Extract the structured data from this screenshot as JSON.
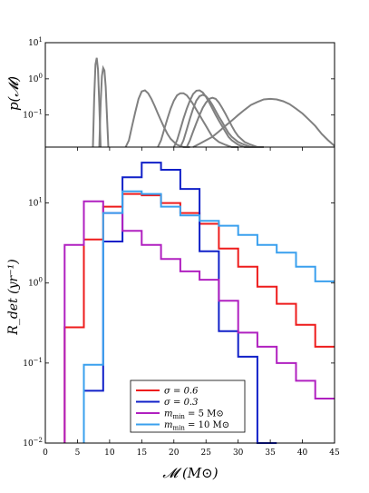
{
  "chart_data": [
    {
      "type": "line",
      "ylabel": "p(𝓜)",
      "yscale": "log",
      "xlim": [
        0,
        45
      ],
      "ylim": [
        0.013,
        10
      ],
      "yticks": [
        {
          "value": 10,
          "base": "10",
          "exp": "1"
        },
        {
          "value": 1,
          "base": "10",
          "exp": "0"
        },
        {
          "value": 0.1,
          "base": "10",
          "exp": "−1"
        }
      ],
      "color": "#808080",
      "series": [
        {
          "x": [
            7.4,
            7.6,
            7.8,
            8.0,
            8.2,
            8.4,
            8.6
          ],
          "y": [
            0.013,
            0.3,
            2.5,
            3.8,
            1.8,
            0.2,
            0.013
          ]
        },
        {
          "x": [
            8.4,
            8.6,
            8.8,
            9.0,
            9.2,
            9.4,
            9.6,
            9.8
          ],
          "y": [
            0.013,
            0.2,
            1.2,
            2.0,
            1.7,
            0.6,
            0.08,
            0.013
          ]
        },
        {
          "x": [
            12.5,
            13,
            13.5,
            14,
            14.5,
            15,
            15.5,
            16,
            16.5,
            17,
            17.5,
            18,
            18.5,
            19,
            19.5,
            20,
            20.5,
            21,
            21.5,
            22,
            22.5
          ],
          "y": [
            0.013,
            0.02,
            0.05,
            0.12,
            0.28,
            0.45,
            0.48,
            0.4,
            0.28,
            0.18,
            0.11,
            0.07,
            0.045,
            0.03,
            0.022,
            0.018,
            0.015,
            0.014,
            0.013,
            0.013,
            0.013
          ]
        },
        {
          "x": [
            17.5,
            18,
            18.5,
            19,
            19.5,
            20,
            20.5,
            21,
            21.5,
            22,
            22.5,
            23,
            23.5,
            24,
            24.5,
            25,
            25.5,
            26,
            27,
            28,
            29,
            30
          ],
          "y": [
            0.013,
            0.02,
            0.04,
            0.08,
            0.15,
            0.25,
            0.35,
            0.4,
            0.4,
            0.35,
            0.27,
            0.2,
            0.14,
            0.1,
            0.07,
            0.05,
            0.035,
            0.025,
            0.018,
            0.015,
            0.013,
            0.013
          ]
        },
        {
          "x": [
            20,
            20.5,
            21,
            21.5,
            22,
            22.5,
            23,
            23.5,
            24,
            24.5,
            25,
            25.5,
            26,
            26.5,
            27,
            27.5,
            28,
            28.5,
            29,
            30,
            31,
            32
          ],
          "y": [
            0.013,
            0.02,
            0.04,
            0.08,
            0.15,
            0.25,
            0.38,
            0.47,
            0.48,
            0.42,
            0.32,
            0.22,
            0.15,
            0.1,
            0.07,
            0.05,
            0.035,
            0.025,
            0.02,
            0.015,
            0.013,
            0.013
          ]
        },
        {
          "x": [
            21,
            21.5,
            22,
            22.5,
            23,
            23.5,
            24,
            24.5,
            25,
            25.5,
            26,
            26.5,
            27,
            27.5,
            28,
            28.5,
            29,
            30,
            31,
            32,
            33
          ],
          "y": [
            0.013,
            0.02,
            0.04,
            0.08,
            0.15,
            0.25,
            0.33,
            0.36,
            0.33,
            0.26,
            0.19,
            0.13,
            0.09,
            0.065,
            0.045,
            0.032,
            0.025,
            0.018,
            0.015,
            0.013,
            0.013
          ]
        },
        {
          "x": [
            22,
            22.5,
            23,
            23.5,
            24,
            24.5,
            25,
            25.5,
            26,
            26.5,
            27,
            27.5,
            28,
            28.5,
            29,
            29.5,
            30,
            31,
            32,
            33,
            34
          ],
          "y": [
            0.013,
            0.02,
            0.035,
            0.06,
            0.1,
            0.16,
            0.22,
            0.28,
            0.3,
            0.28,
            0.22,
            0.16,
            0.11,
            0.075,
            0.05,
            0.035,
            0.026,
            0.018,
            0.015,
            0.013,
            0.013
          ]
        },
        {
          "x": [
            23,
            24,
            25,
            26,
            27,
            28,
            29,
            30,
            31,
            32,
            33,
            34,
            35,
            36,
            37,
            38,
            39,
            40,
            41,
            42,
            43,
            44,
            45
          ],
          "y": [
            0.013,
            0.016,
            0.02,
            0.025,
            0.035,
            0.05,
            0.07,
            0.1,
            0.14,
            0.19,
            0.23,
            0.27,
            0.28,
            0.27,
            0.24,
            0.2,
            0.15,
            0.11,
            0.075,
            0.05,
            0.03,
            0.02,
            0.014
          ]
        }
      ]
    },
    {
      "type": "step",
      "ylabel": "R_det (yr⁻¹)",
      "xlabel": "𝓜 (M⊙)",
      "yscale": "log",
      "xlim": [
        0,
        45
      ],
      "ylim": [
        0.01,
        50
      ],
      "xticks": [
        "0",
        "5",
        "10",
        "15",
        "20",
        "25",
        "30",
        "35",
        "40",
        "45"
      ],
      "yticks": [
        {
          "value": 10,
          "base": "10",
          "exp": "1"
        },
        {
          "value": 1,
          "base": "10",
          "exp": "0"
        },
        {
          "value": 0.1,
          "base": "10",
          "exp": "−1"
        },
        {
          "value": 0.01,
          "base": "10",
          "exp": "−2"
        }
      ],
      "bin_edges": [
        3,
        6,
        9,
        12,
        15,
        18,
        21,
        24,
        27,
        30,
        33,
        36,
        39,
        42,
        45
      ],
      "series": [
        {
          "name": "σ = 0.6",
          "color": "#ee1c1c",
          "values": [
            0.28,
            3.5,
            9,
            13,
            12.5,
            10,
            7.5,
            5.5,
            2.7,
            1.6,
            0.9,
            0.55,
            0.3,
            0.16
          ]
        },
        {
          "name": "σ = 0.3",
          "color": "#1020c8",
          "values": [
            null,
            0.045,
            3.3,
            21,
            32,
            26,
            15,
            2.5,
            0.25,
            0.12,
            0.01,
            null,
            null,
            null
          ]
        },
        {
          "name": "m_min = 5 M⊙",
          "color": "#b020c0",
          "values": [
            3,
            10.5,
            7.5,
            4.5,
            3,
            2,
            1.4,
            1.1,
            0.6,
            0.24,
            0.16,
            0.1,
            0.06,
            0.036
          ]
        },
        {
          "name": "m_min = 10 M⊙",
          "color": "#3aa0ee",
          "values": [
            null,
            0.095,
            7.5,
            14,
            13,
            9,
            7,
            6,
            5.2,
            4,
            3,
            2.4,
            1.6,
            1.05
          ]
        }
      ],
      "legend": {
        "placement": "bottom-center",
        "entries": [
          {
            "color": "#ee1c1c",
            "main": "σ = 0.6",
            "sub": "",
            "tail": ""
          },
          {
            "color": "#1020c8",
            "main": "σ = 0.3",
            "sub": "",
            "tail": ""
          },
          {
            "color": "#b020c0",
            "main": "m",
            "sub": "min",
            "tail": " = 5 M⊙"
          },
          {
            "color": "#3aa0ee",
            "main": "m",
            "sub": "min",
            "tail": " = 10 M⊙"
          }
        ]
      }
    }
  ]
}
